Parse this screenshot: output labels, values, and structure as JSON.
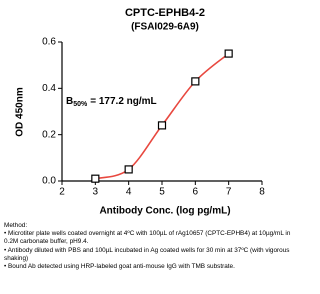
{
  "chart_data": {
    "type": "scatter",
    "title": "CPTC-EPHB4-2",
    "subtitle": "(FSAI029-6A9)",
    "x_label": "Antibody Conc. (log pg/mL)",
    "y_label": "OD 450nm",
    "annotation": {
      "text": "B",
      "subscript": "50%",
      "rest": "= 177.2 ng/mL"
    },
    "x": [
      3,
      4,
      5,
      6,
      7
    ],
    "series": [
      {
        "color": "#e8483f",
        "values": [
          0.01,
          0.05,
          0.24,
          0.43,
          0.55
        ]
      }
    ],
    "xlim": [
      2,
      8
    ],
    "xticks": [
      2,
      3,
      4,
      5,
      6,
      7,
      8
    ],
    "ylim": [
      0,
      0.6
    ],
    "yticks": [
      {
        "value": 0,
        "label": "0.0"
      },
      0.2,
      0.4,
      0.6
    ]
  },
  "method": {
    "heading": "Method:",
    "items": [
      "Microtiter plate wells coated overnight at 4ºC  with 100µL of rAg10657 (CPTC-EPHB4) at 10µg/mL in 0.2M carbonate buffer, pH9.4.",
      "Antibody diluted with PBS and 100µL incubated in Ag coated wells for 30 min at 37ºC (with vigorous shaking)",
      "Bound Ab detected using HRP-labeled goat anti-mouse IgG with TMB substrate."
    ]
  }
}
